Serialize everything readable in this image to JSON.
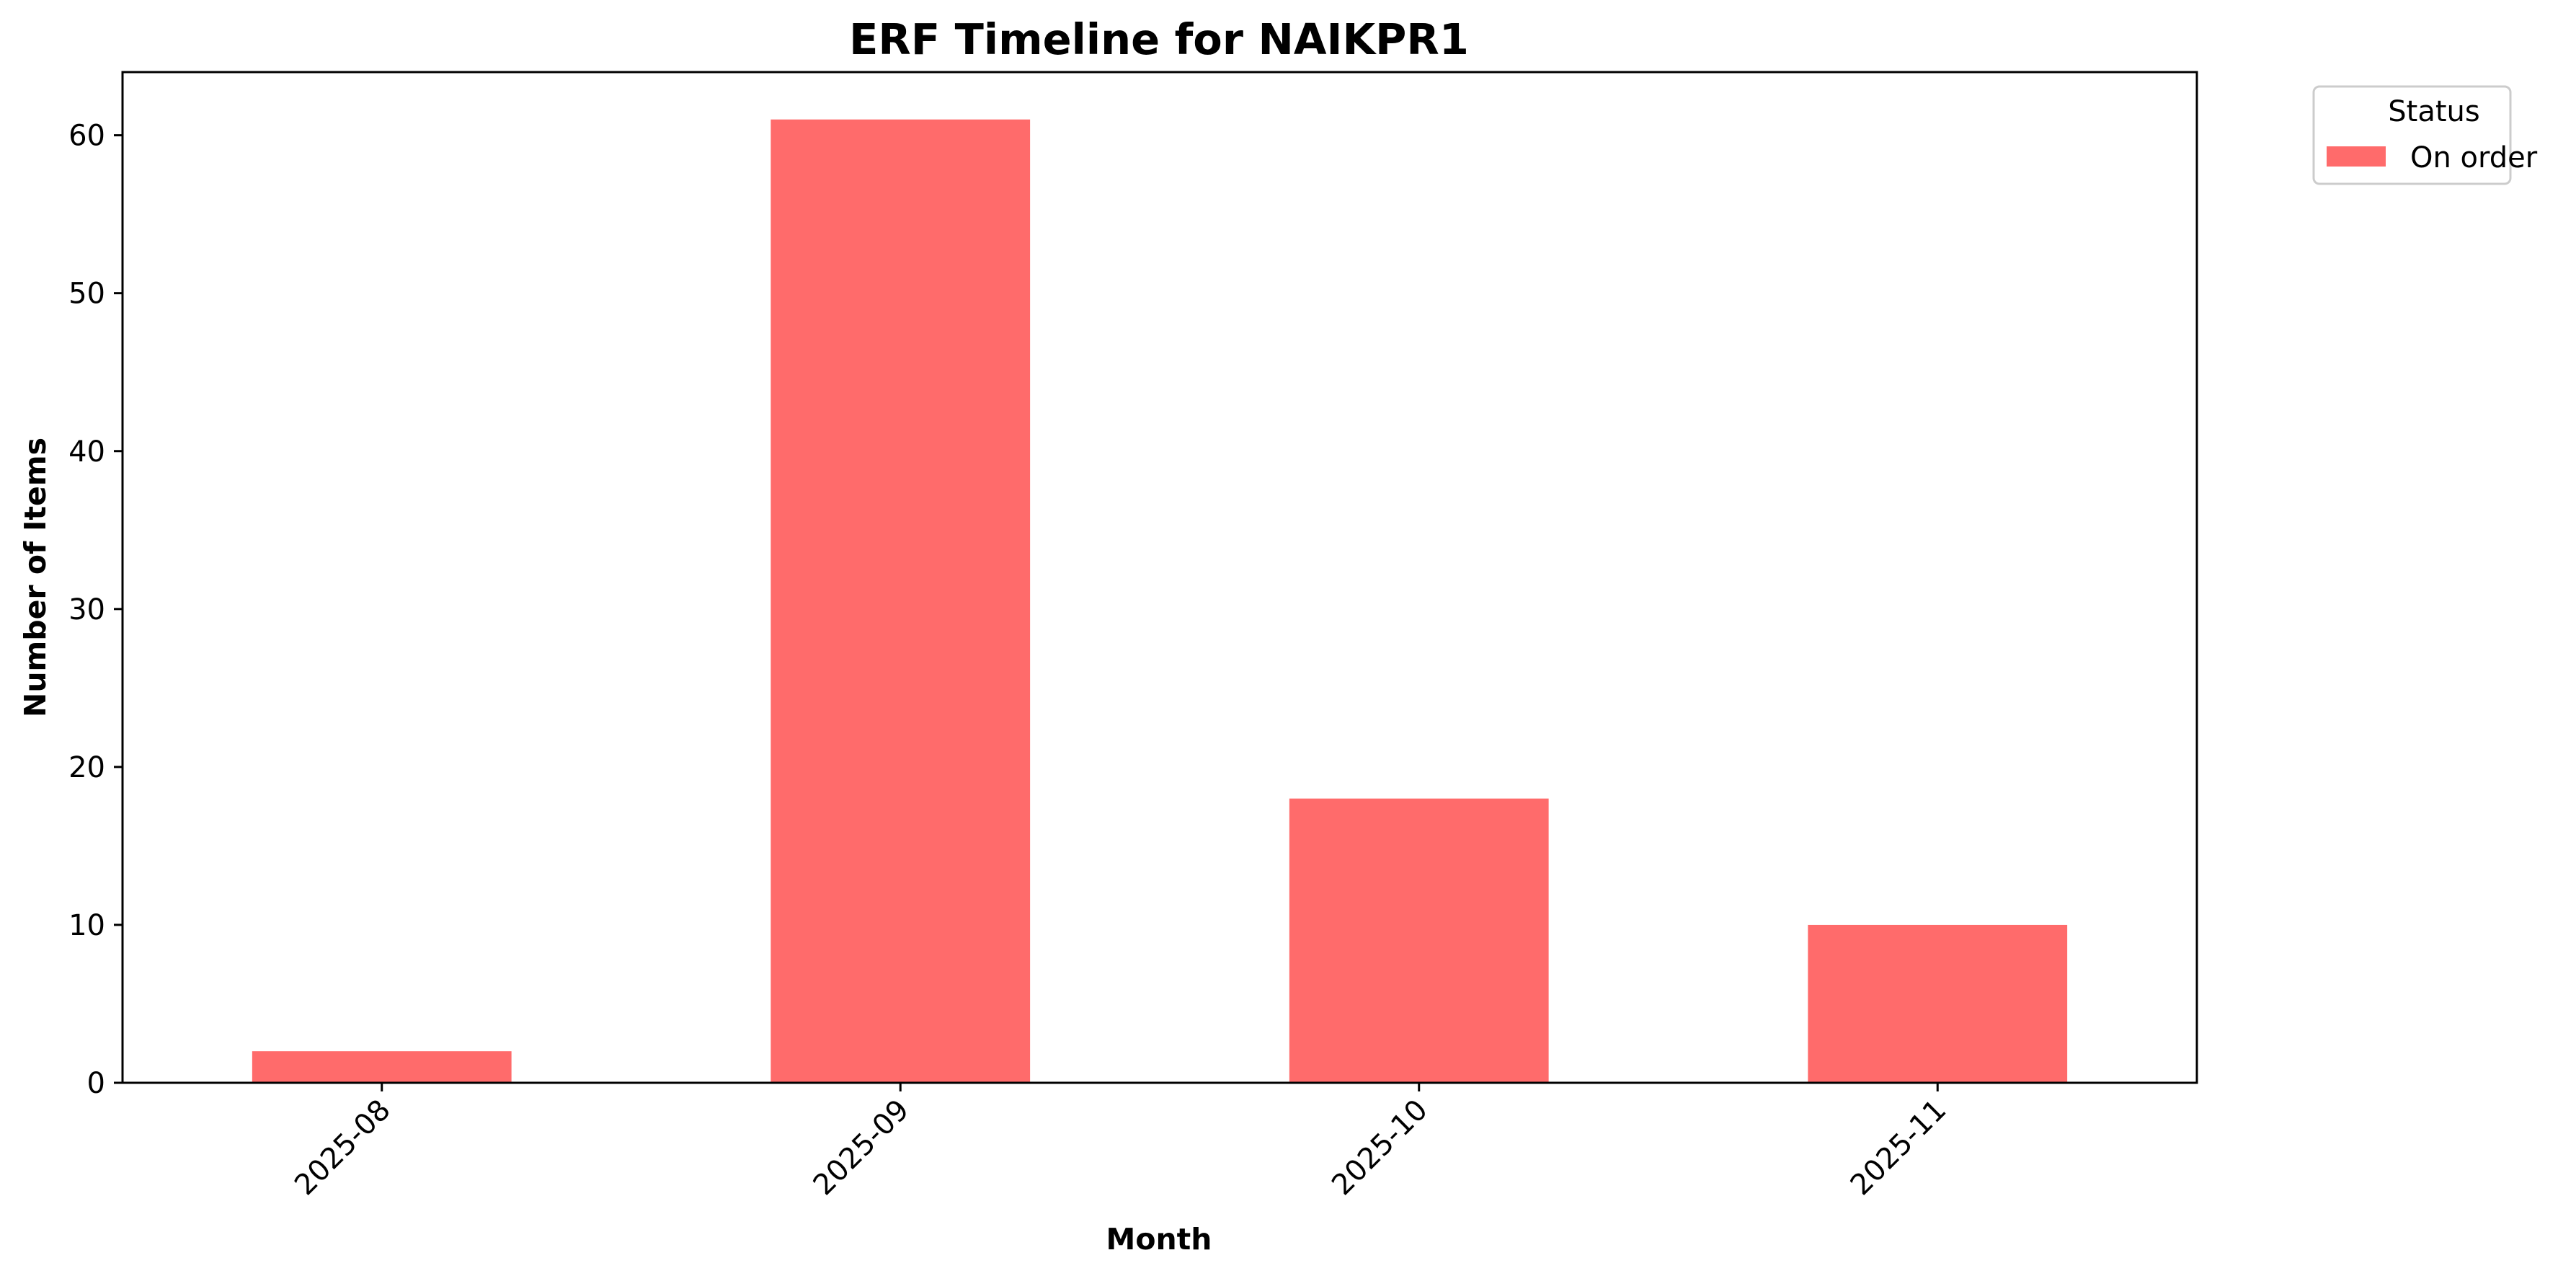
{
  "chart_data": {
    "type": "bar",
    "title": "ERF Timeline for NAIKPR1",
    "xlabel": "Month",
    "ylabel": "Number of Items",
    "categories": [
      "2025-08",
      "2025-09",
      "2025-10",
      "2025-11"
    ],
    "series": [
      {
        "name": "On order",
        "color": "#ff6b6b",
        "values": [
          2,
          61,
          18,
          10
        ]
      }
    ],
    "ylim": [
      0,
      64
    ],
    "yticks": [
      0,
      10,
      20,
      30,
      40,
      50,
      60
    ],
    "xtick_rotation": 45,
    "grid": false,
    "legend": {
      "title": "Status",
      "placement": "outside top-right"
    }
  }
}
